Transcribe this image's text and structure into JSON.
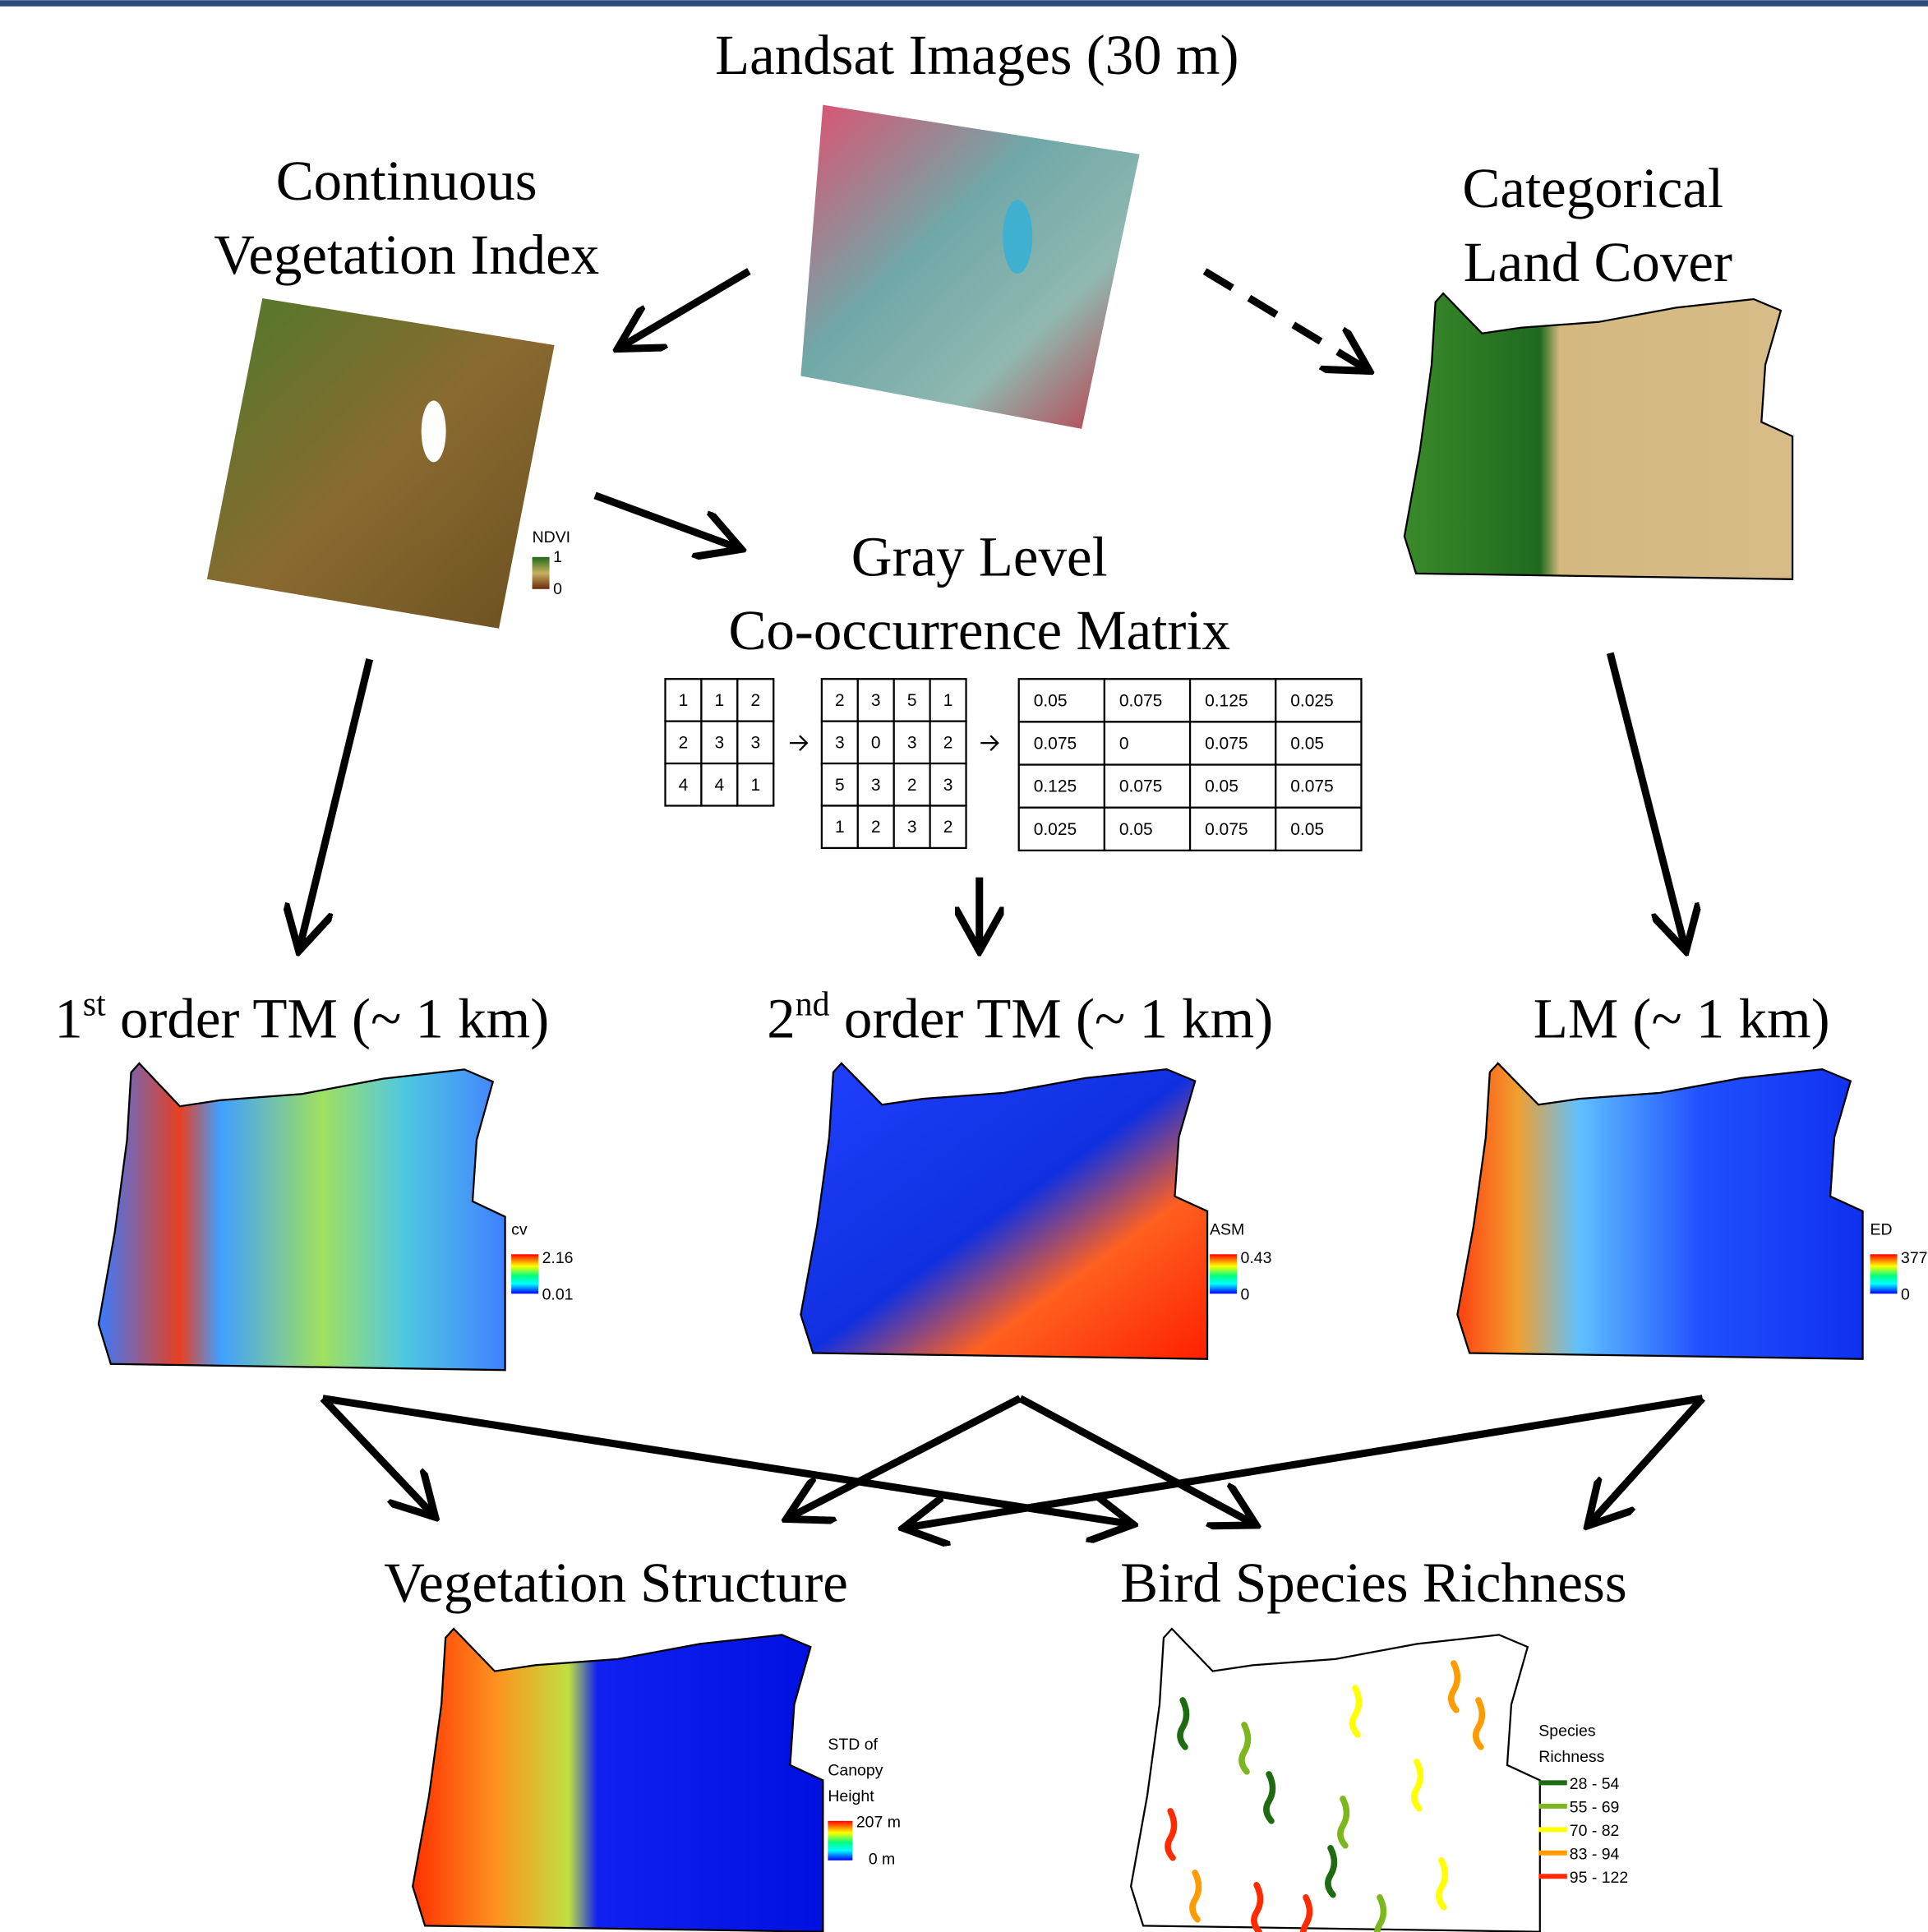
{
  "nodes": {
    "landsat": {
      "title": "Landsat Images (30 m)"
    },
    "vegetation_index": {
      "title_lines": [
        "Continuous",
        "Vegetation Index"
      ],
      "legend": {
        "title": "NDVI",
        "max": "1",
        "min": "0"
      }
    },
    "land_cover": {
      "title_lines": [
        "Categorical",
        "Land Cover"
      ]
    },
    "glcm": {
      "title_lines": [
        "Gray Level",
        "Co-occurrence Matrix"
      ],
      "matrices": [
        [
          [
            1,
            1,
            2
          ],
          [
            2,
            3,
            3
          ],
          [
            4,
            4,
            1
          ]
        ],
        [
          [
            2,
            3,
            5,
            1
          ],
          [
            3,
            0,
            3,
            2
          ],
          [
            5,
            3,
            2,
            3
          ],
          [
            1,
            2,
            3,
            2
          ]
        ],
        [
          [
            0.05,
            0.075,
            0.125,
            0.025
          ],
          [
            0.075,
            0,
            0.075,
            0.05
          ],
          [
            0.125,
            0.075,
            0.05,
            0.075
          ],
          [
            0.025,
            0.05,
            0.075,
            0.05
          ]
        ]
      ]
    },
    "tm1": {
      "title": {
        "pre": "1",
        "sup": "st",
        "post": " order TM (~ 1 km)"
      },
      "legend": {
        "title": "cv",
        "max": "2.16",
        "min": "0.01"
      }
    },
    "tm2": {
      "title": {
        "pre": "2",
        "sup": "nd",
        "post": " order TM (~ 1 km)"
      },
      "legend": {
        "title": "ASM",
        "max": "0.43",
        "min": "0"
      }
    },
    "lm": {
      "title": "LM (~ 1 km)",
      "legend": {
        "title": "ED",
        "max": "377",
        "min": "0"
      }
    },
    "vegetation_structure": {
      "title": "Vegetation Structure",
      "legend": {
        "title_lines": [
          "STD of",
          "Canopy",
          "Height"
        ],
        "max": "207 m",
        "min": "0 m"
      }
    },
    "bird_richness": {
      "title": "Bird Species Richness",
      "legend": {
        "title_lines": [
          "Species",
          "Richness"
        ],
        "items": [
          {
            "label": "28 - 54",
            "color": "#1e6b12"
          },
          {
            "label": "55 - 69",
            "color": "#7db71e"
          },
          {
            "label": "70 - 82",
            "color": "#ffff00"
          },
          {
            "label": "83 - 94",
            "color": "#ff9a00"
          },
          {
            "label": "95 - 122",
            "color": "#ff2a00"
          }
        ]
      }
    }
  }
}
